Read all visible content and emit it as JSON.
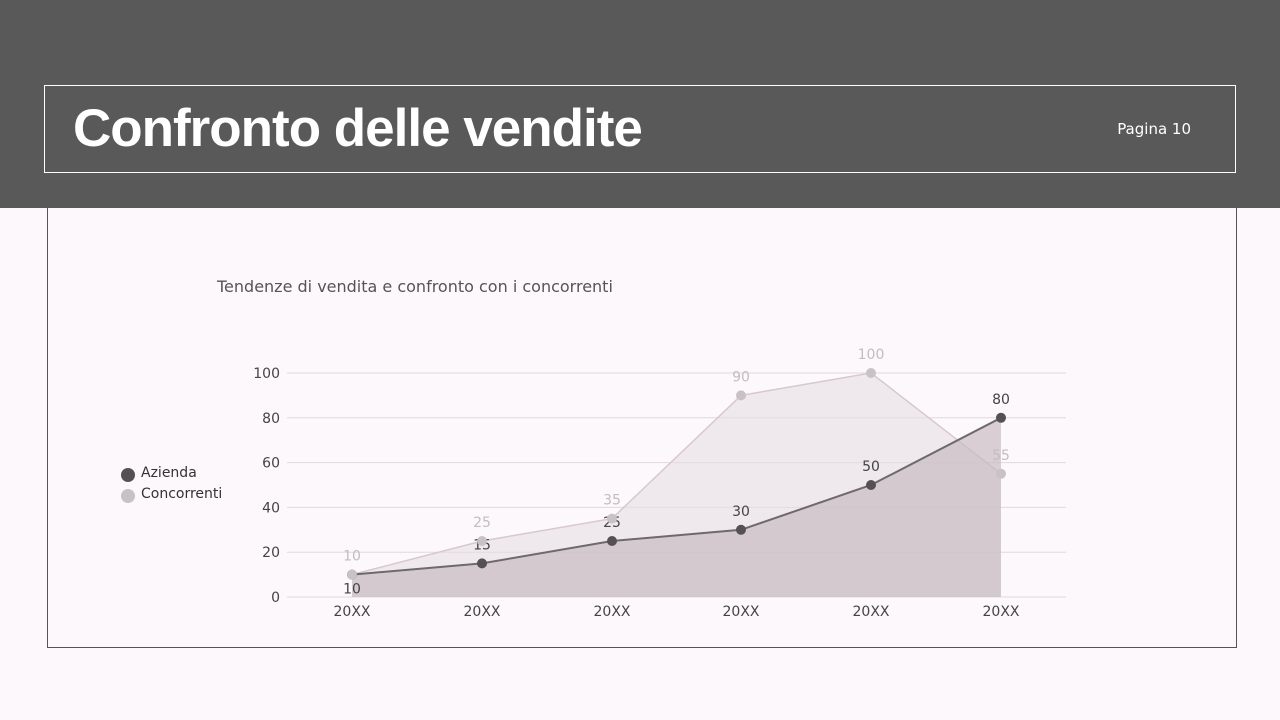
{
  "header": {
    "title": "Confronto delle vendite",
    "page_label": "Pagina 10"
  },
  "chart_data": {
    "type": "area",
    "title": "Tendenze di vendita e confronto con i concorrenti",
    "categories": [
      "20XX",
      "20XX",
      "20XX",
      "20XX",
      "20XX",
      "20XX"
    ],
    "ylim": [
      0,
      100
    ],
    "yticks": [
      0,
      20,
      40,
      60,
      80,
      100
    ],
    "grid": true,
    "legend_position": "left",
    "series": [
      {
        "name": "Azienda",
        "values": [
          10,
          15,
          25,
          30,
          50,
          80
        ],
        "color": "#555052"
      },
      {
        "name": "Concorrenti",
        "values": [
          10,
          25,
          35,
          90,
          100,
          55
        ],
        "color": "#c9c2c5"
      }
    ]
  }
}
